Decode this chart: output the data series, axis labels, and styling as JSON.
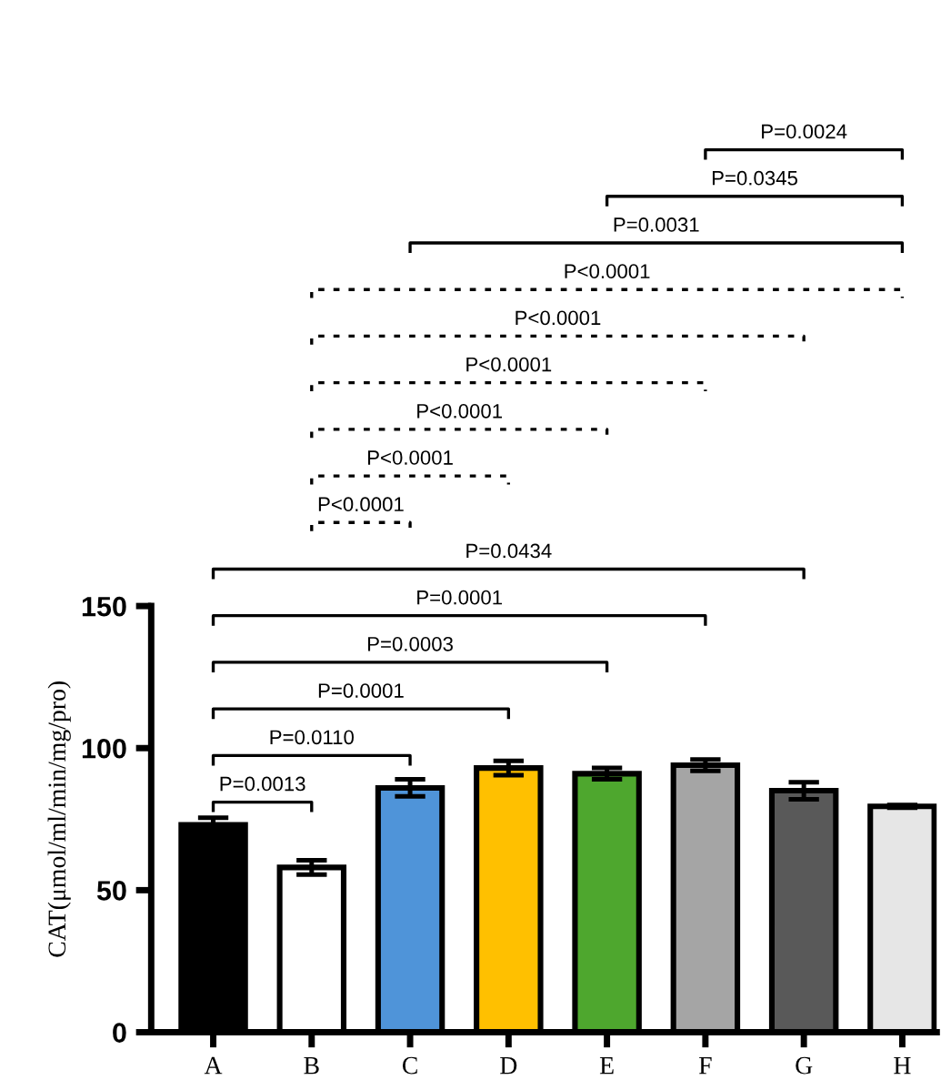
{
  "chart_data": {
    "type": "bar",
    "ylabel": "CAT(μmol/ml/min/mg/pro)",
    "categories": [
      "A",
      "B",
      "C",
      "D",
      "E",
      "F",
      "G",
      "H"
    ],
    "values": [
      73,
      58,
      86,
      93,
      91,
      94,
      85,
      79.5
    ],
    "errors": [
      2.5,
      2.5,
      3,
      2.5,
      2,
      2,
      3,
      0.5
    ],
    "colors": [
      "#000000",
      "#ffffff",
      "#4f94d9",
      "#ffc000",
      "#4ea72e",
      "#a5a5a5",
      "#595959",
      "#e6e6e6"
    ],
    "ylim": [
      0,
      150
    ],
    "yticks": [
      0,
      50,
      100,
      150
    ],
    "grid": false,
    "legend": false,
    "annotations": [
      "P=0.0024",
      "P=0.0345",
      "P=0.0031",
      "P<0.0001",
      "P<0.0001",
      "P<0.0001",
      "P<0.0001",
      "P<0.0001",
      "P<0.0001",
      "P=0.0434",
      "P=0.0001",
      "P=0.0003",
      "P=0.0001",
      "P=0.0110",
      "P=0.0013"
    ]
  }
}
